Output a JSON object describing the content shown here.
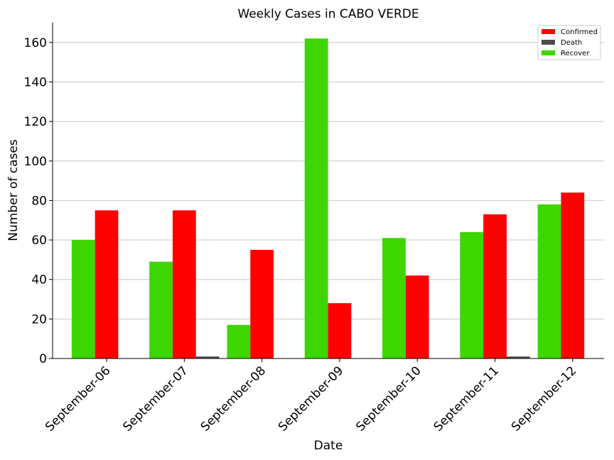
{
  "chart_data": {
    "type": "bar",
    "title": "Weekly Cases in CABO VERDE",
    "xlabel": "Date",
    "ylabel": "Number of cases",
    "categories": [
      "September-06",
      "September-07",
      "September-08",
      "September-09",
      "September-10",
      "September-11",
      "September-12"
    ],
    "series": [
      {
        "name": "Recover",
        "color": "#3dd600",
        "values": [
          60,
          49,
          17,
          162,
          61,
          64,
          78
        ]
      },
      {
        "name": "Confirmed",
        "color": "#ff0000",
        "values": [
          75,
          75,
          55,
          28,
          42,
          73,
          84
        ]
      },
      {
        "name": "Death",
        "color": "#4d4d4d",
        "values": [
          0,
          1,
          0,
          0,
          0,
          1,
          0
        ]
      }
    ],
    "legend_order": [
      "Confirmed",
      "Death",
      "Recover"
    ],
    "ylim": [
      0,
      170
    ],
    "yticks": [
      0,
      20,
      40,
      60,
      80,
      100,
      120,
      140,
      160
    ],
    "grid": "horizontal",
    "legend_position": "top-right"
  }
}
